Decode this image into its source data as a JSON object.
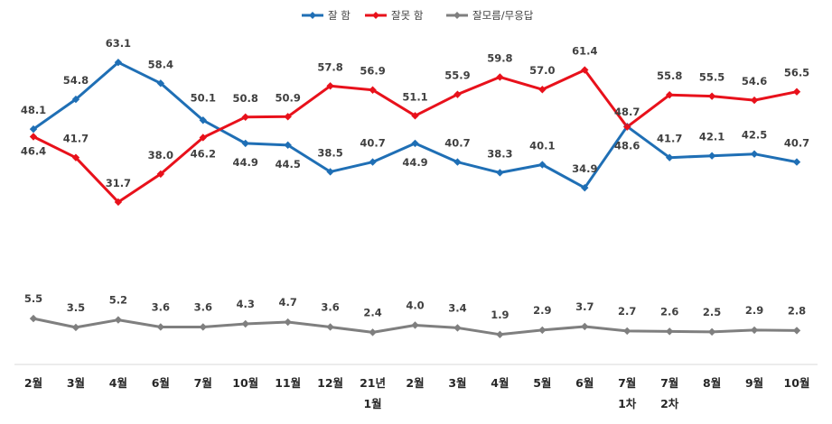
{
  "chart_data": {
    "type": "line",
    "title": "",
    "xlabel": "",
    "ylabel": "",
    "ylim": [
      0,
      70
    ],
    "grid": false,
    "legend_position": "top-center",
    "categories": [
      [
        "2월"
      ],
      [
        "3월"
      ],
      [
        "4월"
      ],
      [
        "6월"
      ],
      [
        "7월"
      ],
      [
        "10월"
      ],
      [
        "11월"
      ],
      [
        "12월"
      ],
      [
        "21년",
        "1월"
      ],
      [
        "2월"
      ],
      [
        "3월"
      ],
      [
        "4월"
      ],
      [
        "5월"
      ],
      [
        "6월"
      ],
      [
        "7월",
        "1차"
      ],
      [
        "7월",
        "2차"
      ],
      [
        "8월"
      ],
      [
        "9월"
      ],
      [
        "10월"
      ]
    ],
    "series": [
      {
        "name": "잘 함",
        "color": "#1f6fb5",
        "values": [
          48.1,
          54.8,
          63.1,
          58.4,
          50.1,
          44.9,
          44.5,
          38.5,
          40.7,
          44.9,
          40.7,
          38.3,
          40.1,
          34.9,
          48.7,
          41.7,
          42.1,
          42.5,
          40.7
        ],
        "labels": [
          "48.1",
          "54.8",
          "63.1",
          "58.4",
          "50.1",
          "44.9",
          "44.5",
          "38.5",
          "40.7",
          "44.9",
          "40.7",
          "38.3",
          "40.1",
          "34.9",
          "48.7",
          "41.7",
          "42.1",
          "42.5",
          "40.7"
        ]
      },
      {
        "name": "잘못 함",
        "color": "#e8111b",
        "values": [
          46.4,
          41.7,
          31.7,
          38.0,
          46.2,
          50.8,
          50.9,
          57.8,
          56.9,
          51.1,
          55.9,
          59.8,
          57.0,
          61.4,
          48.6,
          55.8,
          55.5,
          54.6,
          56.5
        ],
        "labels": [
          "46.4",
          "41.7",
          "31.7",
          "38.0",
          "46.2",
          "50.8",
          "50.9",
          "57.8",
          "56.9",
          "51.1",
          "55.9",
          "59.8",
          "57.0",
          "61.4",
          "48.6",
          "55.8",
          "55.5",
          "54.6",
          "56.5"
        ]
      },
      {
        "name": "잘모름/무응답",
        "color": "#7f7f7f",
        "values": [
          5.5,
          3.5,
          5.2,
          3.6,
          3.6,
          4.3,
          4.7,
          3.6,
          2.4,
          4.0,
          3.4,
          1.9,
          2.9,
          3.7,
          2.7,
          2.6,
          2.5,
          2.9,
          2.8
        ],
        "labels": [
          "5.5",
          "3.5",
          "5.2",
          "3.6",
          "3.6",
          "4.3",
          "4.7",
          "3.6",
          "2.4",
          "4.0",
          "3.4",
          "1.9",
          "2.9",
          "3.7",
          "2.7",
          "2.6",
          "2.5",
          "2.9",
          "2.8"
        ]
      }
    ]
  }
}
